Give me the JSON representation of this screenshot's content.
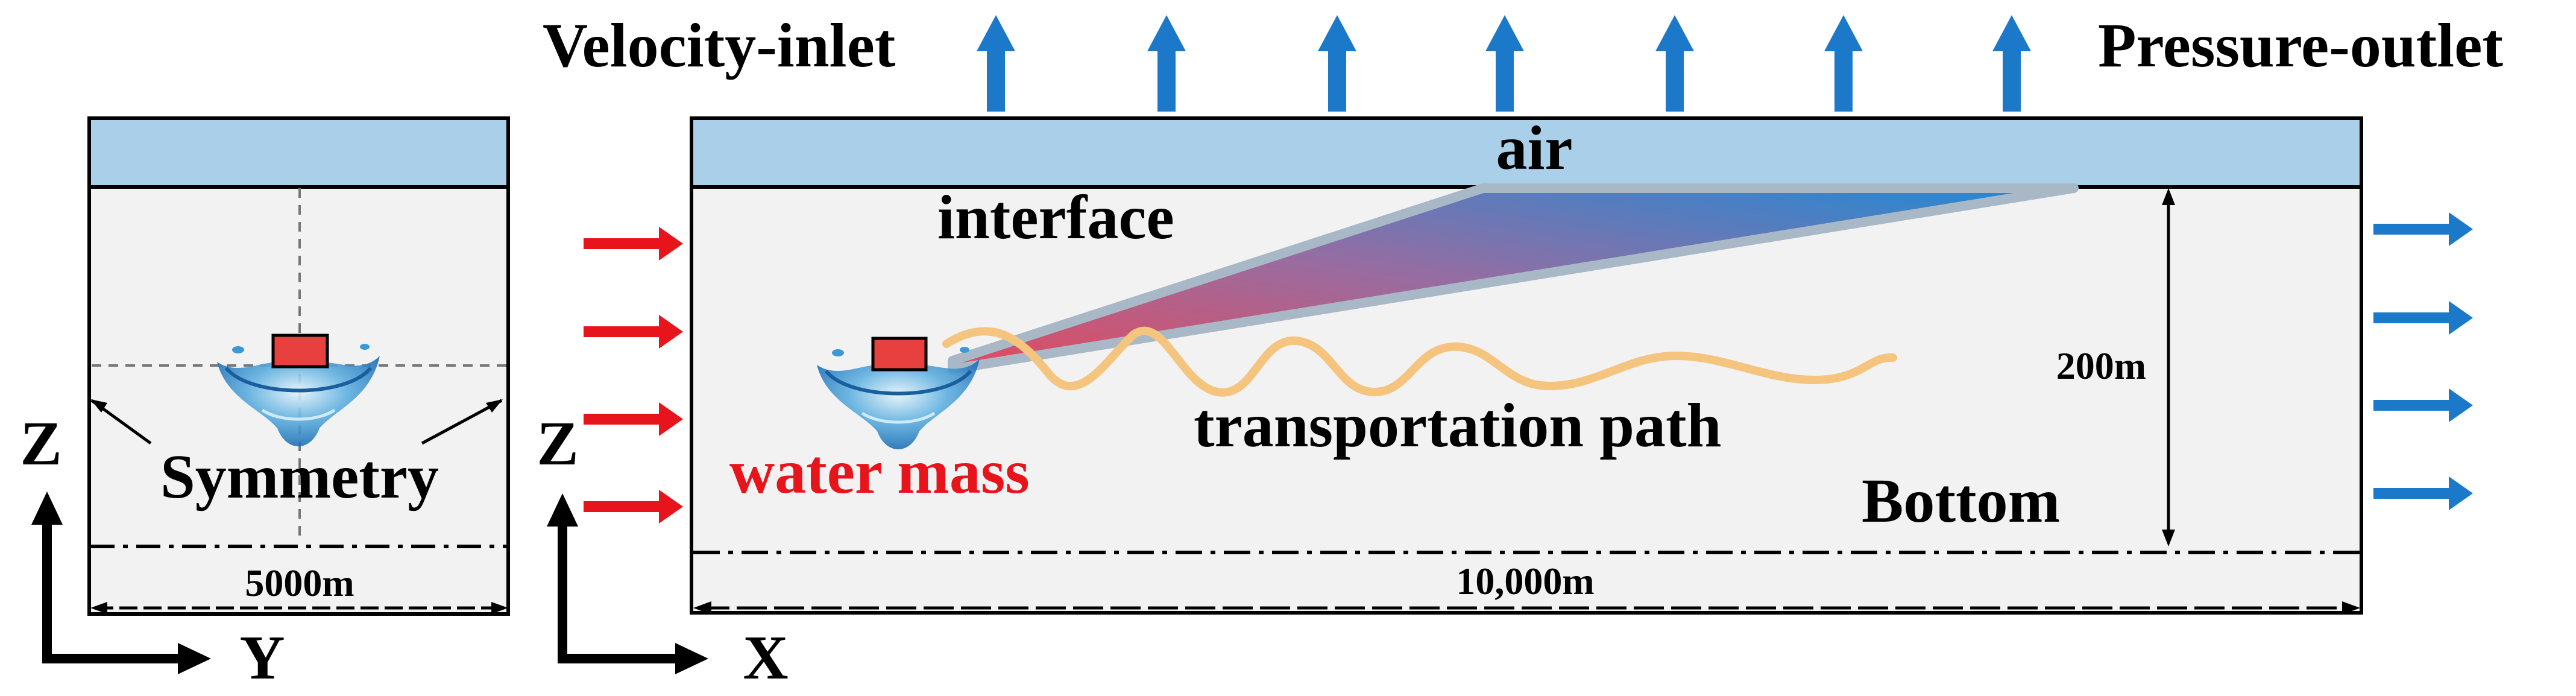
{
  "labels": {
    "velocity_inlet": "Velocity-inlet",
    "pressure_outlet": "Pressure-outlet",
    "air": "air",
    "interface": "interface",
    "transportation_path": "transportation path",
    "water_mass": "water mass",
    "bottom": "Bottom",
    "symmetry": "Symmetry",
    "length_dim": "10,000m",
    "width_dim": "5000m",
    "depth_dim": "200m",
    "axis_z_left": "Z",
    "axis_y": "Y",
    "axis_z_right": "Z",
    "axis_x": "X"
  },
  "colors": {
    "air_layer": "#aacfe9",
    "domain_fill": "#f2f2f2",
    "outline": "#000000",
    "inflow_arrow": "#e8141b",
    "outflow_arrow": "#1c78c8",
    "water_mass_text": "#e8141b",
    "path": "#f5c57f",
    "plume_start": "#e24b5e",
    "plume_end": "#1f8ad6",
    "plume_edge": "#a9b8c6",
    "water_block": "#e8403e",
    "splash": "#2f8fd0"
  },
  "icons": {
    "inflow": "arrow-right-icon",
    "outflow": "arrow-right-icon",
    "top_outflow": "arrow-up-icon",
    "water_mass": "water-splash-icon"
  }
}
